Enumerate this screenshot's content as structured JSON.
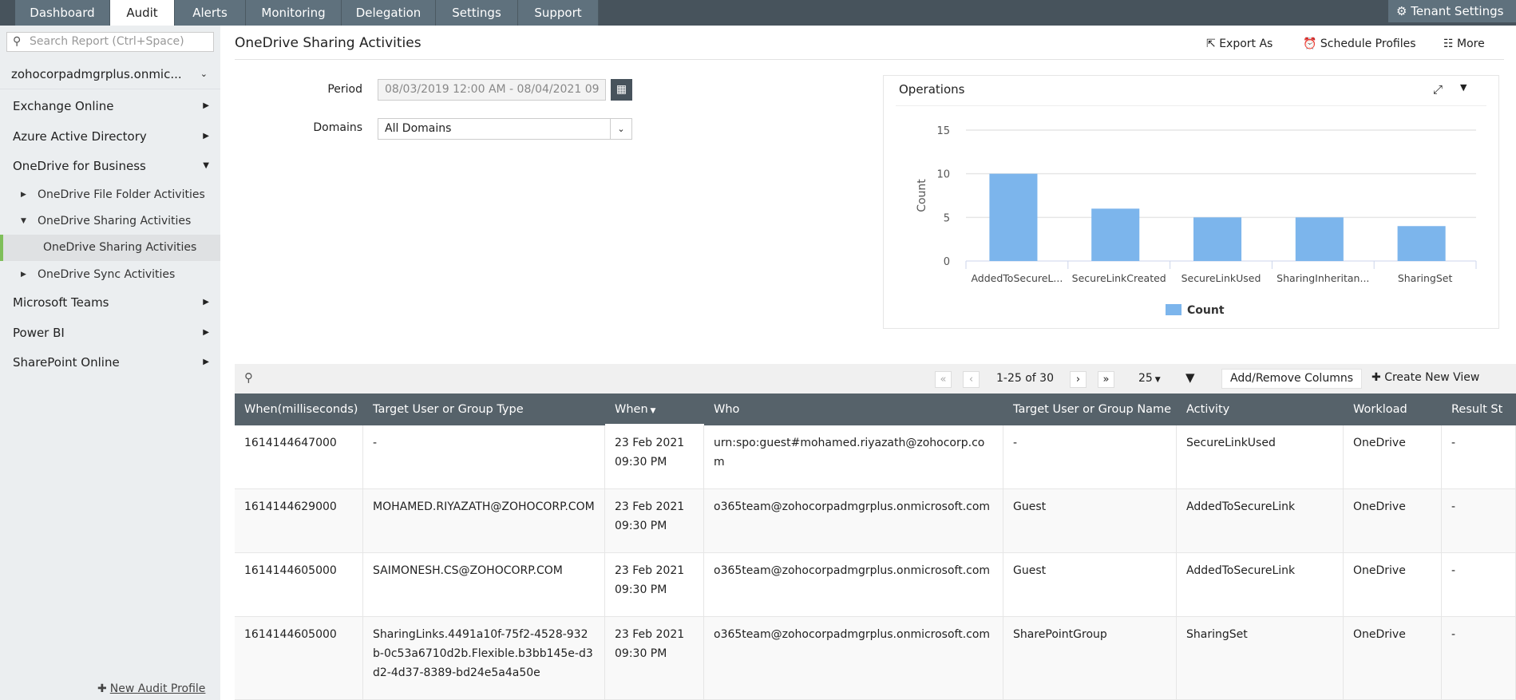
{
  "topnav": {
    "tabs": [
      "Dashboard",
      "Audit",
      "Alerts",
      "Monitoring",
      "Delegation",
      "Settings",
      "Support"
    ],
    "active": "Audit",
    "tenant_settings": "Tenant Settings"
  },
  "sidebar": {
    "search_placeholder": "Search Report (Ctrl+Space)",
    "domain": "zohocorpadmgrplus.onmic...",
    "items": [
      {
        "label": "Exchange Online"
      },
      {
        "label": "Azure Active Directory"
      },
      {
        "label": "OneDrive for Business"
      },
      {
        "label": "OneDrive File Folder Activities"
      },
      {
        "label": "OneDrive Sharing Activities"
      },
      {
        "label": "OneDrive Sharing Activities"
      },
      {
        "label": "OneDrive Sync Activities"
      },
      {
        "label": "Microsoft Teams"
      },
      {
        "label": "Power BI"
      },
      {
        "label": "SharePoint Online"
      }
    ],
    "new_audit_profile": "New Audit Profile"
  },
  "header": {
    "title": "OneDrive Sharing Activities",
    "export": "Export As",
    "schedule": "Schedule Profiles",
    "more": "More"
  },
  "filters": {
    "period_label": "Period",
    "period_value": "08/03/2019 12:00 AM - 08/04/2021 09",
    "domains_label": "Domains",
    "domains_value": "All Domains"
  },
  "chart_data": {
    "type": "bar",
    "title": "Operations",
    "categories": [
      "AddedToSecureL...",
      "SecureLinkCreated",
      "SecureLinkUsed",
      "SharingInheritan...",
      "SharingSet"
    ],
    "series": [
      {
        "name": "Count",
        "values": [
          10,
          6,
          5,
          5,
          4
        ]
      }
    ],
    "ylabel": "Count",
    "ylim": [
      0,
      15
    ],
    "yticks": [
      0,
      5,
      10,
      15
    ],
    "grid": true,
    "legend": "bottom",
    "color": "#7cb5ec"
  },
  "toolbar": {
    "range": "1-25 of 30",
    "page_size": "25",
    "add_remove": "Add/Remove Columns",
    "create_view": "Create New View"
  },
  "table": {
    "headers": [
      "When(milliseconds)",
      "Target User or Group Type",
      "When",
      "Who",
      "Target User or Group Name",
      "Activity",
      "Workload",
      "Result St"
    ],
    "rows": [
      [
        "1614144647000",
        "-",
        "23 Feb 2021 09:30 PM",
        "urn:spo:guest#mohamed.riyazath@zohocorp.com",
        "-",
        "SecureLinkUsed",
        "OneDrive",
        "-"
      ],
      [
        "1614144629000",
        "MOHAMED.RIYAZATH@ZOHOCORP.COM",
        "23 Feb 2021 09:30 PM",
        "o365team@zohocorpadmgrplus.onmicrosoft.com",
        "Guest",
        "AddedToSecureLink",
        "OneDrive",
        "-"
      ],
      [
        "1614144605000",
        "SAIMONESH.CS@ZOHOCORP.COM",
        "23 Feb 2021 09:30 PM",
        "o365team@zohocorpadmgrplus.onmicrosoft.com",
        "Guest",
        "AddedToSecureLink",
        "OneDrive",
        "-"
      ],
      [
        "1614144605000",
        "SharingLinks.4491a10f-75f2-4528-932b-0c53a6710d2b.Flexible.b3bb145e-d3d2-4d37-8389-bd24e5a4a50e",
        "23 Feb 2021 09:30 PM",
        "o365team@zohocorpadmgrplus.onmicrosoft.com",
        "SharePointGroup",
        "SharingSet",
        "OneDrive",
        "-"
      ]
    ]
  }
}
